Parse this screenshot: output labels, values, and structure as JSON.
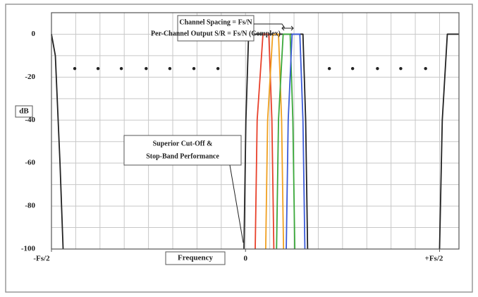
{
  "chart_data": {
    "type": "line",
    "y_label": "dB",
    "x_label": "Frequency",
    "annotations": [
      {
        "lines": [
          "Channel Spacing = Fs/N",
          "Per-Channel Output S/R = Fs/N (Complex)"
        ]
      },
      {
        "lines": [
          "Superior Cut-Off &",
          "Stop-Band Performance"
        ]
      }
    ],
    "xlim": [
      -0.5,
      0.55
    ],
    "ylim": [
      -100,
      10
    ],
    "xticks": [
      {
        "value": -0.5,
        "label": "-Fs/2"
      },
      0,
      {
        "value": 0.5,
        "label": "+Fs/2"
      }
    ],
    "yticks": [
      -100,
      -80,
      -60,
      -40,
      -20,
      0
    ],
    "xgrid": [
      -0.5,
      -0.4375,
      -0.375,
      -0.3125,
      -0.25,
      -0.1875,
      -0.125,
      -0.0625,
      0,
      0.0625,
      0.125,
      0.1875,
      0.25,
      0.3125,
      0.375,
      0.4375,
      0.5
    ],
    "ygrid": [
      -90,
      -70,
      -50,
      -30,
      -10
    ],
    "grid": true,
    "series": [
      {
        "color": "#222222",
        "x": [
          -0.5,
          -0.49,
          -0.478,
          -0.47
        ],
        "values": [
          0,
          -10,
          -60,
          -100
        ]
      },
      {
        "color": "#222222",
        "x": [
          -0.004,
          0.001,
          0.008,
          0.148,
          0.155,
          0.16
        ],
        "values": [
          -100,
          -40,
          0,
          0,
          -40,
          -100
        ]
      },
      {
        "color": "#e8402a",
        "x": [
          0.025,
          0.03,
          0.045,
          0.06,
          0.068,
          0.073
        ],
        "values": [
          -100,
          -40,
          0,
          0,
          -40,
          -100
        ]
      },
      {
        "color": "#f0a020",
        "x": [
          0.052,
          0.057,
          0.07,
          0.085,
          0.093,
          0.098
        ],
        "values": [
          -100,
          -40,
          0,
          0,
          -40,
          -100
        ]
      },
      {
        "color": "#3aa83a",
        "x": [
          0.08,
          0.085,
          0.097,
          0.115,
          0.122,
          0.127
        ],
        "values": [
          -100,
          -40,
          0,
          0,
          -40,
          -100
        ]
      },
      {
        "color": "#3a5ad8",
        "x": [
          0.105,
          0.11,
          0.12,
          0.14,
          0.148,
          0.153
        ],
        "values": [
          -100,
          -40,
          0,
          0,
          -40,
          -100
        ]
      },
      {
        "color": "#222222",
        "x": [
          0.5,
          0.507,
          0.52,
          0.55
        ],
        "values": [
          -100,
          -40,
          0,
          0
        ]
      },
      {
        "color": "#222222",
        "style": "dots",
        "x": [
          -0.44,
          -0.38,
          -0.32,
          -0.256,
          -0.195,
          -0.133,
          -0.071,
          0.216,
          0.276,
          0.34,
          0.4,
          0.464
        ],
        "values": [
          -16,
          -16,
          -16,
          -16,
          -16,
          -16,
          -16,
          -16,
          -16,
          -16,
          -16,
          -16
        ]
      }
    ]
  }
}
